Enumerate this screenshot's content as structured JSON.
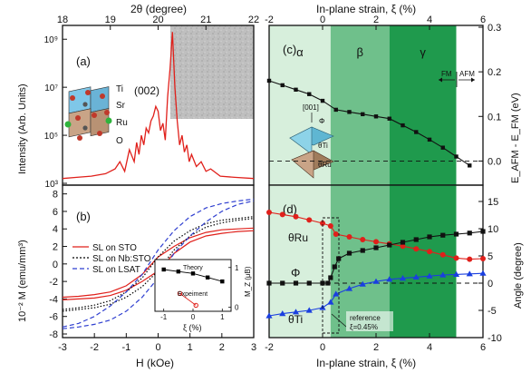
{
  "chart_data": [
    {
      "id": "a",
      "panel_label": "(a)",
      "type": "line",
      "xlabel": "2θ (degree)",
      "ylabel": "Intensity (Arb. Units)",
      "xlim": [
        18,
        22
      ],
      "ylim_log10": [
        3,
        9.5
      ],
      "xticks": [
        "18",
        "19",
        "20",
        "21",
        "22"
      ],
      "yticks": [
        "10³",
        "10⁵",
        "10⁷",
        "10⁹"
      ],
      "yscale": "log",
      "annotation": "(002)",
      "atom_labels": [
        "Ti",
        "Sr",
        "Ru",
        "O"
      ],
      "series": [
        {
          "color": "#e0201b",
          "x": [
            18.0,
            18.3,
            18.6,
            18.9,
            19.1,
            19.2,
            19.3,
            19.4,
            19.5,
            19.55,
            19.6,
            19.65,
            19.7,
            19.75,
            19.8,
            19.85,
            19.9,
            19.95,
            20.0,
            20.05,
            20.1,
            20.15,
            20.2,
            20.25,
            20.3,
            20.35,
            20.4,
            20.45,
            20.5,
            20.55,
            20.6,
            20.65,
            20.7,
            20.8,
            20.9,
            21.0,
            21.1,
            21.3,
            21.6,
            22.0
          ],
          "log10_y": [
            3.2,
            3.25,
            3.3,
            3.4,
            3.6,
            3.9,
            3.5,
            4.4,
            3.9,
            4.7,
            4.2,
            5.0,
            4.6,
            5.3,
            5.1,
            5.6,
            5.8,
            6.2,
            6.0,
            5.2,
            5.5,
            4.8,
            6.6,
            7.8,
            9.3,
            7.0,
            5.6,
            4.6,
            5.0,
            4.3,
            4.6,
            3.9,
            4.2,
            3.7,
            3.9,
            3.5,
            3.6,
            3.3,
            3.25,
            3.2
          ]
        }
      ]
    },
    {
      "id": "b",
      "panel_label": "(b)",
      "type": "line",
      "xlabel": "H (kOe)",
      "ylabel": "10⁻² M (emu/mm³)",
      "xlim": [
        -3,
        3
      ],
      "ylim": [
        -8,
        9
      ],
      "xticks": [
        "-3",
        "-2",
        "-1",
        "0",
        "1",
        "2",
        "3"
      ],
      "yticks": [
        "-8",
        "-6",
        "-4",
        "-2",
        "0",
        "2",
        "4",
        "6",
        "8"
      ],
      "legend": [
        "SL on STO",
        "SL on Nb:STO",
        "SL on LSAT"
      ],
      "series": [
        {
          "name": "SL on STO",
          "color": "#e0201b",
          "dash": "solid",
          "x": [
            -3,
            -2.5,
            -2,
            -1.5,
            -1,
            -0.5,
            0,
            0.5,
            1,
            1.5,
            2,
            2.5,
            3
          ],
          "upper": [
            -3.8,
            -3.7,
            -3.5,
            -3.2,
            -2.5,
            -1.2,
            0.8,
            2.0,
            3.0,
            3.6,
            3.9,
            4.0,
            4.1
          ],
          "lower": [
            -4.1,
            -4.0,
            -3.9,
            -3.6,
            -3.0,
            -2.0,
            -0.8,
            1.2,
            2.5,
            3.2,
            3.5,
            3.7,
            3.8
          ]
        },
        {
          "name": "SL on Nb:STO",
          "color": "#000000",
          "dash": "dot",
          "x": [
            -3,
            -2.5,
            -2,
            -1.5,
            -1,
            -0.5,
            0,
            0.5,
            1,
            1.5,
            2,
            2.5,
            3
          ],
          "upper": [
            -5.2,
            -5.0,
            -4.7,
            -4.2,
            -3.2,
            -1.6,
            0.8,
            2.6,
            3.8,
            4.6,
            5.0,
            5.2,
            5.4
          ],
          "lower": [
            -5.4,
            -5.2,
            -5.0,
            -4.6,
            -3.8,
            -2.6,
            -0.8,
            1.6,
            3.2,
            4.2,
            4.7,
            5.0,
            5.2
          ]
        },
        {
          "name": "SL on LSAT",
          "color": "#2f3fd0",
          "dash": "dash",
          "x": [
            -3,
            -2.5,
            -2,
            -1.5,
            -1,
            -0.5,
            0,
            0.5,
            1,
            1.5,
            2,
            2.5,
            3
          ],
          "upper": [
            -7.2,
            -6.8,
            -6.0,
            -4.8,
            -3.2,
            -1.2,
            1.6,
            3.8,
            5.4,
            6.4,
            6.9,
            7.2,
            7.4
          ],
          "lower": [
            -7.4,
            -7.2,
            -6.9,
            -6.4,
            -5.4,
            -3.8,
            -1.6,
            1.2,
            3.2,
            4.8,
            6.0,
            6.8,
            7.2
          ]
        }
      ],
      "inset": {
        "type": "scatter",
        "xlabel": "ξ (%)",
        "ylabel": "M_Z (μB)",
        "xlim": [
          -1.3,
          1.3
        ],
        "ylim": [
          -0.1,
          1.2
        ],
        "xticks": [
          "-1",
          "0",
          "1"
        ],
        "yticks": [
          "0",
          "1"
        ],
        "series": [
          {
            "name": "Theory",
            "color": "#000000",
            "marker": "square",
            "x": [
              -1,
              -0.5,
              0,
              0.5,
              1
            ],
            "y": [
              0.95,
              0.9,
              0.85,
              0.75,
              0.65
            ]
          },
          {
            "name": "Expeiment",
            "color": "#e0201b",
            "marker": "circle-open",
            "x": [
              -0.45,
              0.1
            ],
            "y": [
              0.35,
              0.05
            ]
          }
        ]
      }
    },
    {
      "id": "c",
      "panel_label": "(c)",
      "type": "line",
      "xlabel": "In-plane strain, ξ (%)",
      "ylabel": "E_AFM - E_FM (eV)",
      "xlim": [
        -2,
        6
      ],
      "ylim": [
        -0.05,
        0.3
      ],
      "xticks": [
        "-2",
        "0",
        "2",
        "4",
        "6"
      ],
      "yticks": [
        "0.0",
        "0.1",
        "0.2",
        "0.3"
      ],
      "regions": [
        {
          "label": "α",
          "from": -2,
          "to": 0.3,
          "color": "#d7efdc"
        },
        {
          "label": "β",
          "from": 0.3,
          "to": 2.5,
          "color": "#6fc08b"
        },
        {
          "label": "γ",
          "from": 2.5,
          "to": 5.0,
          "color": "#1f9a4d"
        }
      ],
      "annotations": [
        "FM",
        "AFM",
        "[001]",
        "Φ",
        "θTi",
        "θRu"
      ],
      "series": [
        {
          "color": "#111111",
          "marker": "square",
          "x": [
            -2,
            -1.5,
            -1,
            -0.5,
            0,
            0.5,
            1,
            1.5,
            2,
            2.5,
            3,
            3.5,
            4,
            4.5,
            5,
            5.5
          ],
          "y": [
            0.18,
            0.17,
            0.16,
            0.15,
            0.135,
            0.115,
            0.11,
            0.105,
            0.1,
            0.095,
            0.08,
            0.065,
            0.048,
            0.03,
            0.01,
            -0.01
          ]
        }
      ],
      "hline": 0.0
    },
    {
      "id": "d",
      "panel_label": "(d)",
      "type": "line",
      "xlabel": "In-plane strain, ξ (%)",
      "ylabel": "Angle (degree)",
      "xlim": [
        -2,
        6
      ],
      "ylim": [
        -10,
        18
      ],
      "xticks": [
        "-2",
        "0",
        "2",
        "4",
        "6"
      ],
      "yticks": [
        "-10",
        "-5",
        "0",
        "5",
        "10",
        "15"
      ],
      "regions": [
        {
          "from": -2,
          "to": 0.3,
          "color": "#d7efdc"
        },
        {
          "from": 0.3,
          "to": 2.5,
          "color": "#6fc08b"
        },
        {
          "from": 2.5,
          "to": 5.0,
          "color": "#1f9a4d"
        }
      ],
      "annotations": [
        "θRu",
        "Φ",
        "θTi",
        "reference",
        "ξ=0.45%"
      ],
      "series": [
        {
          "name": "θRu",
          "color": "#e0201b",
          "marker": "circle",
          "x": [
            -2,
            -1.5,
            -1,
            -0.5,
            0,
            0.3,
            0.5,
            1,
            1.5,
            2,
            2.5,
            3,
            3.5,
            4,
            4.5,
            5,
            5.5,
            6
          ],
          "y": [
            13,
            12.6,
            12.2,
            11.6,
            11,
            10.5,
            9,
            8.5,
            8,
            7.6,
            7.2,
            6.8,
            6.3,
            5.8,
            5.2,
            4.6,
            4.4,
            4.5
          ]
        },
        {
          "name": "Φ",
          "color": "#111111",
          "marker": "square",
          "x": [
            -2,
            -1.5,
            -1,
            -0.5,
            0,
            0.2,
            0.3,
            0.45,
            0.6,
            1,
            1.5,
            2,
            2.5,
            3,
            3.5,
            4,
            4.5,
            5,
            5.5,
            6
          ],
          "y": [
            0,
            0,
            0,
            0,
            0,
            0,
            1,
            3,
            4.5,
            5.5,
            6,
            6.5,
            7,
            7.5,
            8,
            8.5,
            8.8,
            9,
            9.2,
            9.5
          ]
        },
        {
          "name": "θTi",
          "color": "#1a3fe0",
          "marker": "triangle",
          "x": [
            -2,
            -1.5,
            -1,
            -0.5,
            0,
            0.3,
            0.5,
            1,
            1.5,
            2,
            2.5,
            3,
            3.5,
            4,
            4.5,
            5,
            5.5,
            6
          ],
          "y": [
            -6,
            -5.6,
            -5.3,
            -5,
            -4.5,
            -3.5,
            -2,
            -1,
            -0.2,
            0.3,
            0.7,
            0.9,
            1.1,
            1.3,
            1.5,
            1.6,
            1.7,
            1.8
          ]
        }
      ],
      "hline": 0.0
    }
  ]
}
